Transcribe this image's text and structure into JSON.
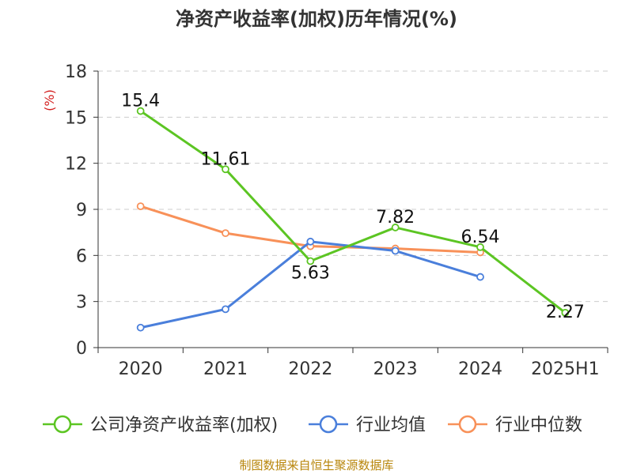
{
  "chart_data": {
    "type": "line",
    "title": "净资产收益率(加权)历年情况(%)",
    "ylabel": "(%)",
    "categories": [
      "2020",
      "2021",
      "2022",
      "2023",
      "2024",
      "2025H1"
    ],
    "ylim": [
      0,
      18
    ],
    "yticks": [
      0,
      3,
      6,
      9,
      12,
      15,
      18
    ],
    "grid": true,
    "legend_position": "bottom",
    "series": [
      {
        "name": "公司净资产收益率(加权)",
        "color": "#5cc523",
        "values": [
          15.4,
          11.61,
          5.63,
          7.82,
          6.54,
          2.27
        ],
        "labels": [
          "15.4",
          "11.61",
          "5.63",
          "7.82",
          "6.54",
          "2.27"
        ]
      },
      {
        "name": "行业均值",
        "color": "#4a7fdb",
        "values": [
          1.3,
          2.5,
          6.9,
          6.3,
          4.6,
          null
        ]
      },
      {
        "name": "行业中位数",
        "color": "#f89159",
        "values": [
          9.2,
          7.45,
          6.6,
          6.45,
          6.2,
          null
        ]
      }
    ]
  },
  "source": "制图数据来自恒生聚源数据库",
  "colors": {
    "axis": "#333333",
    "grid": "#cccccc",
    "ylabel": "#d42020",
    "source": "#b8860b"
  }
}
